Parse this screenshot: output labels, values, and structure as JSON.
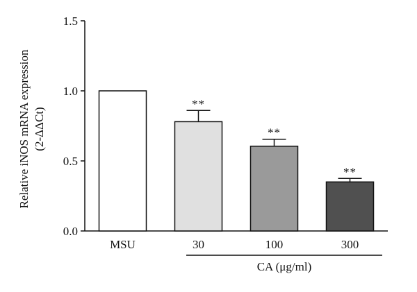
{
  "chart_data": {
    "type": "bar",
    "categories": [
      "MSU",
      "30",
      "100",
      "300"
    ],
    "values": [
      1.0,
      0.78,
      0.605,
      0.35
    ],
    "errors": [
      0,
      0.08,
      0.05,
      0.025
    ],
    "significance": [
      "",
      "**",
      "**",
      "**"
    ],
    "bar_colors": [
      "#ffffff",
      "#e0e0e0",
      "#9a9a9a",
      "#505050"
    ],
    "ylabel": "Relative iNOS mRNA expression",
    "ylabel_unit": "(2-ΔΔCt)",
    "ylim": [
      0,
      1.5
    ],
    "yticks": [
      "0.0",
      "0.5",
      "1.0",
      "1.5"
    ],
    "group_label": "CA (μg/ml)",
    "grid": false,
    "legend": "none"
  }
}
